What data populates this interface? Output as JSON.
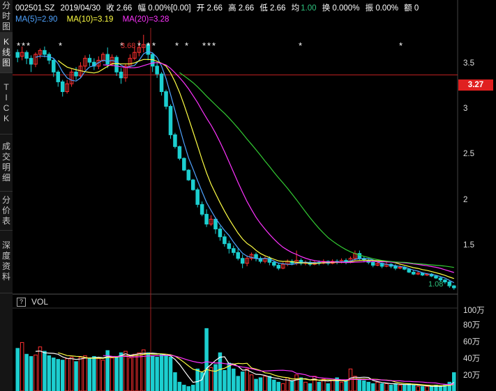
{
  "sidebar": {
    "tabs": [
      {
        "label": "分时图",
        "active": false
      },
      {
        "label": "K线图",
        "active": true
      },
      {
        "label": "TICK",
        "active": false
      },
      {
        "label": "成交明细",
        "active": false
      },
      {
        "label": "分价表",
        "active": false
      },
      {
        "label": "深度资料",
        "active": false
      }
    ]
  },
  "header": {
    "symbol": "002501.SZ",
    "date": "2019/04/30",
    "close": "收 2.66",
    "change": "幅 0.00%[0.00]",
    "open": "开 2.66",
    "high": "高 2.66",
    "low": "低 2.66",
    "avg_label": "均",
    "avg_value": "1.00",
    "turnover": "换 0.000%",
    "amplitude": "振 0.00%",
    "amount": "额 0"
  },
  "ma": {
    "ma5": {
      "label": "MA(5)=2.90",
      "color": "#4fa3ff"
    },
    "ma10": {
      "label": "MA(10)=3.19",
      "color": "#ffff44"
    },
    "ma20": {
      "label": "MA(20)=3.28",
      "color": "#ff33ff"
    },
    "ma60_color": "#33cc33"
  },
  "price_axis": {
    "ticks": [
      "3.5",
      "3",
      "2.5",
      "2",
      "1.5"
    ],
    "current_price": "3.27",
    "high_marker": "3.68",
    "low_marker": "1.08"
  },
  "volume": {
    "label": "VOL",
    "help": "?",
    "ticks": [
      "100万",
      "80万",
      "60万",
      "40万",
      "20万"
    ]
  },
  "colors": {
    "up": "#ff3030",
    "down": "#1ccfd0",
    "bg": "#000000"
  },
  "chart_data": {
    "type": "candlestick",
    "ylim": [
      1.05,
      3.75
    ],
    "price_ticks": [
      3.5,
      3.0,
      2.5,
      2.0,
      1.5
    ],
    "volume_ticks": [
      20,
      40,
      60,
      80,
      100
    ],
    "volume_unit": "万",
    "series": [
      {
        "name": "MA(5)",
        "value": 2.9
      },
      {
        "name": "MA(10)",
        "value": 3.19
      },
      {
        "name": "MA(20)",
        "value": 3.28
      }
    ],
    "candles": [
      [
        3.5,
        3.45,
        3.53,
        3.4,
        58
      ],
      [
        3.46,
        3.5,
        3.56,
        3.42,
        66
      ],
      [
        3.5,
        3.44,
        3.52,
        3.38,
        50
      ],
      [
        3.44,
        3.38,
        3.47,
        3.3,
        47
      ],
      [
        3.38,
        3.48,
        3.5,
        3.35,
        49
      ],
      [
        3.48,
        3.52,
        3.54,
        3.44,
        60
      ],
      [
        3.52,
        3.48,
        3.56,
        3.45,
        54
      ],
      [
        3.48,
        3.42,
        3.5,
        3.38,
        48
      ],
      [
        3.42,
        3.3,
        3.44,
        3.25,
        45
      ],
      [
        3.3,
        3.2,
        3.32,
        3.15,
        43
      ],
      [
        3.2,
        3.1,
        3.22,
        3.05,
        42
      ],
      [
        3.1,
        3.18,
        3.22,
        3.08,
        44
      ],
      [
        3.18,
        3.3,
        3.33,
        3.15,
        46
      ],
      [
        3.3,
        3.26,
        3.35,
        3.22,
        40
      ],
      [
        3.26,
        3.36,
        3.4,
        3.24,
        46
      ],
      [
        3.36,
        3.44,
        3.47,
        3.32,
        48
      ],
      [
        3.44,
        3.4,
        3.48,
        3.36,
        45
      ],
      [
        3.4,
        3.36,
        3.44,
        3.32,
        47
      ],
      [
        3.36,
        3.42,
        3.46,
        3.33,
        44
      ],
      [
        3.42,
        3.48,
        3.5,
        3.4,
        42
      ],
      [
        3.48,
        3.38,
        3.55,
        3.34,
        55
      ],
      [
        3.38,
        3.45,
        3.48,
        3.36,
        45
      ],
      [
        3.45,
        3.3,
        3.47,
        3.26,
        47
      ],
      [
        3.3,
        3.24,
        3.34,
        3.18,
        52
      ],
      [
        3.24,
        3.36,
        3.38,
        3.2,
        54
      ],
      [
        3.36,
        3.44,
        3.48,
        3.34,
        45
      ],
      [
        3.44,
        3.5,
        3.56,
        3.42,
        50
      ],
      [
        3.5,
        3.55,
        3.62,
        3.46,
        52
      ],
      [
        3.55,
        3.58,
        3.68,
        3.5,
        56
      ],
      [
        3.58,
        3.48,
        3.6,
        3.42,
        52
      ],
      [
        3.48,
        3.36,
        3.5,
        3.3,
        48
      ],
      [
        3.36,
        3.28,
        3.4,
        3.24,
        46
      ],
      [
        3.28,
        3.1,
        3.3,
        3.06,
        50
      ],
      [
        3.1,
        2.95,
        3.12,
        2.92,
        48
      ],
      [
        2.95,
        2.66,
        2.97,
        2.62,
        46
      ],
      [
        2.66,
        2.54,
        2.68,
        2.52,
        25
      ],
      [
        2.54,
        2.42,
        2.55,
        2.4,
        12
      ],
      [
        2.42,
        2.3,
        2.43,
        2.29,
        8
      ],
      [
        2.3,
        2.2,
        2.31,
        2.19,
        6
      ],
      [
        2.2,
        2.1,
        2.21,
        2.09,
        8
      ],
      [
        2.1,
        1.95,
        2.12,
        1.92,
        30
      ],
      [
        1.95,
        1.85,
        1.98,
        1.83,
        25
      ],
      [
        1.85,
        1.75,
        1.9,
        1.72,
        85
      ],
      [
        1.75,
        1.8,
        1.84,
        1.73,
        32
      ],
      [
        1.8,
        1.7,
        1.82,
        1.65,
        36
      ],
      [
        1.7,
        1.62,
        1.73,
        1.58,
        52
      ],
      [
        1.62,
        1.55,
        1.65,
        1.52,
        28
      ],
      [
        1.55,
        1.5,
        1.58,
        1.45,
        38
      ],
      [
        1.5,
        1.46,
        1.53,
        1.43,
        30
      ],
      [
        1.46,
        1.4,
        1.5,
        1.38,
        20
      ],
      [
        1.4,
        1.35,
        1.44,
        1.3,
        26
      ],
      [
        1.35,
        1.4,
        1.43,
        1.32,
        30
      ],
      [
        1.4,
        1.44,
        1.46,
        1.38,
        22
      ],
      [
        1.44,
        1.4,
        1.46,
        1.37,
        16
      ],
      [
        1.4,
        1.37,
        1.42,
        1.35,
        18
      ],
      [
        1.37,
        1.4,
        1.42,
        1.35,
        20
      ],
      [
        1.4,
        1.36,
        1.42,
        1.33,
        20
      ],
      [
        1.36,
        1.33,
        1.38,
        1.31,
        15
      ],
      [
        1.33,
        1.3,
        1.35,
        1.28,
        12
      ],
      [
        1.3,
        1.34,
        1.36,
        1.29,
        10
      ],
      [
        1.34,
        1.37,
        1.39,
        1.32,
        18
      ],
      [
        1.37,
        1.35,
        1.39,
        1.33,
        14
      ],
      [
        1.35,
        1.38,
        1.48,
        1.33,
        22
      ],
      [
        1.38,
        1.35,
        1.4,
        1.33,
        18
      ],
      [
        1.35,
        1.36,
        1.38,
        1.33,
        12
      ],
      [
        1.36,
        1.34,
        1.38,
        1.32,
        10
      ],
      [
        1.34,
        1.36,
        1.38,
        1.33,
        20
      ],
      [
        1.36,
        1.35,
        1.38,
        1.33,
        12
      ],
      [
        1.35,
        1.37,
        1.39,
        1.34,
        16
      ],
      [
        1.37,
        1.35,
        1.38,
        1.33,
        10
      ],
      [
        1.35,
        1.37,
        1.39,
        1.34,
        14
      ],
      [
        1.37,
        1.36,
        1.39,
        1.34,
        18
      ],
      [
        1.36,
        1.38,
        1.4,
        1.35,
        12
      ],
      [
        1.38,
        1.36,
        1.4,
        1.34,
        14
      ],
      [
        1.36,
        1.4,
        1.42,
        1.35,
        30
      ],
      [
        1.4,
        1.45,
        1.48,
        1.38,
        20
      ],
      [
        1.45,
        1.4,
        1.48,
        1.38,
        16
      ],
      [
        1.4,
        1.38,
        1.42,
        1.36,
        14
      ],
      [
        1.38,
        1.36,
        1.4,
        1.34,
        12
      ],
      [
        1.36,
        1.33,
        1.38,
        1.31,
        10
      ],
      [
        1.33,
        1.35,
        1.37,
        1.32,
        12
      ],
      [
        1.35,
        1.32,
        1.36,
        1.3,
        10
      ],
      [
        1.32,
        1.34,
        1.36,
        1.31,
        10
      ],
      [
        1.34,
        1.32,
        1.35,
        1.3,
        8
      ],
      [
        1.32,
        1.3,
        1.34,
        1.28,
        10
      ],
      [
        1.3,
        1.31,
        1.33,
        1.29,
        8
      ],
      [
        1.31,
        1.29,
        1.32,
        1.28,
        8
      ],
      [
        1.29,
        1.26,
        1.3,
        1.25,
        10
      ],
      [
        1.26,
        1.24,
        1.28,
        1.23,
        8
      ],
      [
        1.24,
        1.25,
        1.27,
        1.23,
        6
      ],
      [
        1.25,
        1.23,
        1.26,
        1.22,
        6
      ],
      [
        1.23,
        1.24,
        1.25,
        1.22,
        6
      ],
      [
        1.24,
        1.22,
        1.25,
        1.21,
        6
      ],
      [
        1.22,
        1.2,
        1.23,
        1.19,
        8
      ],
      [
        1.2,
        1.18,
        1.21,
        1.16,
        6
      ],
      [
        1.18,
        1.16,
        1.19,
        1.14,
        8
      ],
      [
        1.16,
        1.12,
        1.17,
        1.1,
        12
      ],
      [
        1.12,
        1.1,
        1.13,
        1.08,
        25
      ]
    ],
    "ma60_from_index": 36
  }
}
